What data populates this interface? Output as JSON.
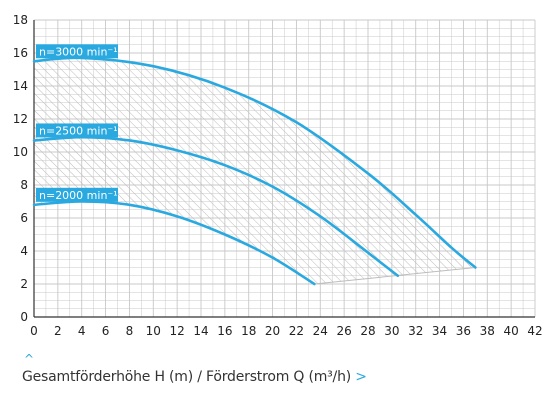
{
  "chart_data": {
    "type": "line",
    "title": "",
    "xlabel": "Gesamtförderhöhe H (m) / Förderstrom Q (m³/h)",
    "ylabel": "",
    "xlim": [
      0,
      42
    ],
    "ylim": [
      0,
      18
    ],
    "x_ticks": [
      0,
      2,
      4,
      6,
      8,
      10,
      12,
      14,
      16,
      18,
      20,
      22,
      24,
      26,
      28,
      30,
      32,
      34,
      36,
      38,
      40,
      42
    ],
    "y_ticks": [
      0,
      2,
      4,
      6,
      8,
      10,
      12,
      14,
      16,
      18
    ],
    "grid": true,
    "series": [
      {
        "name": "n=3000 min⁻¹",
        "x": [
          0,
          4,
          10,
          16,
          22,
          28,
          32,
          35,
          37
        ],
        "y": [
          15.5,
          15.7,
          15.2,
          13.9,
          11.8,
          8.7,
          6.2,
          4.2,
          3.0
        ]
      },
      {
        "name": "n=2500 min⁻¹",
        "x": [
          0,
          4,
          8,
          12,
          16,
          20,
          24,
          28,
          30.5
        ],
        "y": [
          10.7,
          10.9,
          10.7,
          10.1,
          9.2,
          7.9,
          6.1,
          3.9,
          2.5
        ]
      },
      {
        "name": "n=2000 min⁻¹",
        "x": [
          0,
          4,
          8,
          12,
          16,
          20,
          23.5
        ],
        "y": [
          6.8,
          7.0,
          6.8,
          6.1,
          5.0,
          3.6,
          2.0
        ]
      }
    ],
    "hatched_region": "between n=2000 min⁻¹ and n=3000 min⁻¹"
  },
  "colors": {
    "curve": "#29a9e0",
    "badge": "#29a9e0",
    "grid": "#c8c8c8",
    "axis": "#333333",
    "hatch": "#bdbdbd"
  },
  "caption": {
    "text": "Gesamtförderhöhe H (m) / Förderstrom Q (m³/h)",
    "arrow": ">",
    "caret": "^"
  }
}
